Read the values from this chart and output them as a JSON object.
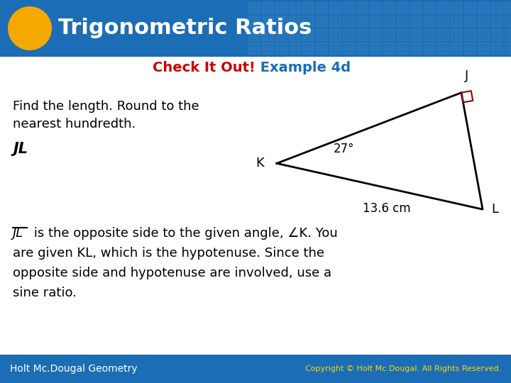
{
  "title": "Trigonometric Ratios",
  "title_color": "#FFFFFF",
  "header_bg_color": "#1B6DB5",
  "header_tile_color": "#3A84C4",
  "header_tile_edge": "#5599D4",
  "oval_color": "#F5A800",
  "subtitle_red": "Check It Out!",
  "subtitle_blue": " Example 4d",
  "subtitle_red_color": "#CC0000",
  "subtitle_blue_color": "#1B6DB5",
  "body_bg_color": "#FFFFFF",
  "find_text_line1": "Find the length. Round to the",
  "find_text_line2": "nearest hundredth.",
  "jl_label": "JL",
  "angle_label": "27°",
  "side_label": "13.6 cm",
  "vertex_K": "K",
  "vertex_L": "L",
  "vertex_J": "J",
  "right_angle_color": "#990000",
  "body_line1_pre": "JL",
  "body_line1_post": " is the opposite side to the given angle, ∠K. You",
  "body_line2": "are given KL, which is the hypotenuse. Since the",
  "body_line3": "opposite side and hypotenuse are involved, use a",
  "body_line4": "sine ratio.",
  "footer_left": "Holt Mc.Dougal Geometry",
  "footer_right": "Copyright © Holt Mc.Dougal. All Rights Reserved.",
  "footer_bg": "#1B6DB5",
  "footer_text_color": "#FFFFFF",
  "footer_right_color": "#FFD700"
}
